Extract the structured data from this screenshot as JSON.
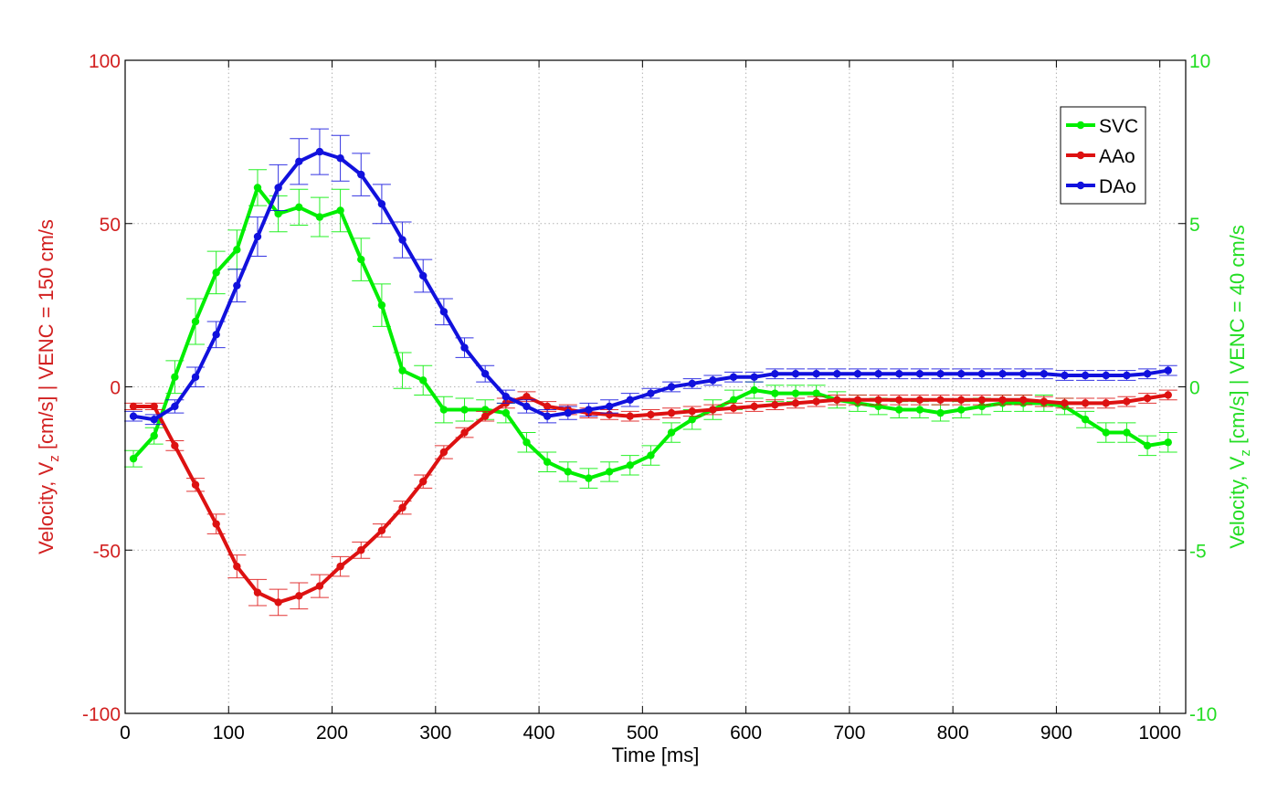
{
  "chart_data": {
    "type": "line",
    "xlabel": "Time [ms]",
    "ylabel_left": "Velocity, V_z [cm/s] | VENC = 150 cm/s",
    "ylabel_right": "Velocity, V_z [cm/s] | VENC = 40 cm/s",
    "xlim": [
      0,
      1025
    ],
    "ylim_left": [
      -100,
      100
    ],
    "ylim_right": [
      -10,
      10
    ],
    "x_ticks": [
      "0",
      "100",
      "200",
      "300",
      "400",
      "500",
      "600",
      "700",
      "800",
      "900",
      "1000"
    ],
    "y_ticks_left": [
      "100",
      "50",
      "0",
      "-50",
      "-100"
    ],
    "y_ticks_right": [
      "10",
      "5",
      "0",
      "-5",
      "-10"
    ],
    "grid": true,
    "legend_position": "top-right",
    "colors": {
      "left_axis": "#d22020",
      "right_axis": "#22dd22",
      "axes": "#000000",
      "grid": "#b3b3b3"
    },
    "series": [
      {
        "name": "SVC",
        "axis": "right",
        "color": "#00ee00",
        "x": [
          8,
          28,
          48,
          68,
          88,
          108,
          128,
          148,
          168,
          188,
          208,
          228,
          248,
          268,
          288,
          308,
          328,
          348,
          368,
          388,
          408,
          428,
          448,
          468,
          488,
          508,
          528,
          548,
          568,
          588,
          608,
          628,
          648,
          668,
          688,
          708,
          728,
          748,
          768,
          788,
          808,
          828,
          848,
          868,
          888,
          908,
          928,
          948,
          968,
          988,
          1008
        ],
        "values": [
          -2.2,
          -1.5,
          0.3,
          2.0,
          3.5,
          4.2,
          6.1,
          5.3,
          5.5,
          5.2,
          5.4,
          3.9,
          2.5,
          0.5,
          0.2,
          -0.7,
          -0.7,
          -0.7,
          -0.8,
          -1.7,
          -2.3,
          -2.6,
          -2.8,
          -2.6,
          -2.4,
          -2.1,
          -1.4,
          -1.0,
          -0.7,
          -0.4,
          -0.1,
          -0.2,
          -0.2,
          -0.2,
          -0.4,
          -0.5,
          -0.6,
          -0.7,
          -0.7,
          -0.8,
          -0.7,
          -0.6,
          -0.5,
          -0.5,
          -0.5,
          -0.6,
          -1.0,
          -1.4,
          -1.4,
          -1.8,
          -1.7
        ],
        "errors": [
          0.25,
          0.25,
          0.5,
          0.7,
          0.65,
          0.6,
          0.55,
          0.55,
          0.55,
          0.6,
          0.65,
          0.65,
          0.65,
          0.55,
          0.45,
          0.4,
          0.35,
          0.3,
          0.3,
          0.3,
          0.3,
          0.3,
          0.3,
          0.3,
          0.3,
          0.3,
          0.3,
          0.3,
          0.3,
          0.3,
          0.25,
          0.25,
          0.25,
          0.25,
          0.25,
          0.25,
          0.25,
          0.25,
          0.25,
          0.25,
          0.25,
          0.25,
          0.25,
          0.25,
          0.25,
          0.25,
          0.25,
          0.3,
          0.3,
          0.3,
          0.3
        ]
      },
      {
        "name": "AAo",
        "axis": "left",
        "color": "#dd1111",
        "x": [
          8,
          28,
          48,
          68,
          88,
          108,
          128,
          148,
          168,
          188,
          208,
          228,
          248,
          268,
          288,
          308,
          328,
          348,
          368,
          388,
          408,
          428,
          448,
          468,
          488,
          508,
          528,
          548,
          568,
          588,
          608,
          628,
          648,
          668,
          688,
          708,
          728,
          748,
          768,
          788,
          808,
          828,
          848,
          868,
          888,
          908,
          928,
          948,
          968,
          988,
          1008
        ],
        "values": [
          -6,
          -6,
          -18,
          -30,
          -42,
          -55,
          -63,
          -66,
          -64,
          -61,
          -55,
          -50,
          -44,
          -37,
          -29,
          -20,
          -14,
          -9,
          -5,
          -3,
          -6,
          -7,
          -8,
          -8.5,
          -9,
          -8.5,
          -8,
          -7.5,
          -7,
          -6.5,
          -6,
          -5.5,
          -5,
          -4.5,
          -4,
          -4,
          -4,
          -4,
          -4,
          -4,
          -4,
          -4,
          -4,
          -4,
          -4.5,
          -5,
          -5,
          -5,
          -4.5,
          -3.5,
          -2.5
        ],
        "errors": [
          1,
          1,
          1.5,
          2,
          3,
          3.5,
          4,
          4,
          4,
          3.5,
          3,
          2.5,
          2,
          2,
          2,
          2,
          1.5,
          1.5,
          1.5,
          1.5,
          1.5,
          1.5,
          1.5,
          1.5,
          1.5,
          1.5,
          1.5,
          1.5,
          1.5,
          1.5,
          1.5,
          1.5,
          1.5,
          1.5,
          1.5,
          1.5,
          1.5,
          1.5,
          1.5,
          1.5,
          1.5,
          1.5,
          1.5,
          1.5,
          1.5,
          1.5,
          1.5,
          1.5,
          1.5,
          1.5,
          1.5
        ]
      },
      {
        "name": "DAo",
        "axis": "left",
        "color": "#1111dd",
        "x": [
          8,
          28,
          48,
          68,
          88,
          108,
          128,
          148,
          168,
          188,
          208,
          228,
          248,
          268,
          288,
          308,
          328,
          348,
          368,
          388,
          408,
          428,
          448,
          468,
          488,
          508,
          528,
          548,
          568,
          588,
          608,
          628,
          648,
          668,
          688,
          708,
          728,
          748,
          768,
          788,
          808,
          828,
          848,
          868,
          888,
          908,
          928,
          948,
          968,
          988,
          1008
        ],
        "values": [
          -9,
          -10,
          -6,
          3,
          16,
          31,
          46,
          61,
          69,
          72,
          70,
          65,
          56,
          45,
          34,
          23,
          12,
          4,
          -3,
          -6,
          -9,
          -8,
          -7,
          -6,
          -4,
          -2,
          0,
          1,
          2,
          3,
          3,
          4,
          4,
          4,
          4,
          4,
          4,
          4,
          4,
          4,
          4,
          4,
          4,
          4,
          4,
          3.5,
          3.5,
          3.5,
          3.5,
          4,
          5
        ],
        "errors": [
          1.5,
          1.5,
          2,
          3,
          4,
          5,
          6,
          7,
          7,
          7,
          7,
          6.5,
          6,
          5.5,
          5,
          4,
          3,
          2.5,
          2,
          2,
          2,
          2,
          2,
          2,
          2,
          1.5,
          1.5,
          1.5,
          1.5,
          1.5,
          1.5,
          1.5,
          1.5,
          1.5,
          1.5,
          1.5,
          1.5,
          1.5,
          1.5,
          1.5,
          1.5,
          1.5,
          1.5,
          1.5,
          1.5,
          1.5,
          1.5,
          1.5,
          1.5,
          1.5,
          1.5
        ]
      }
    ]
  }
}
